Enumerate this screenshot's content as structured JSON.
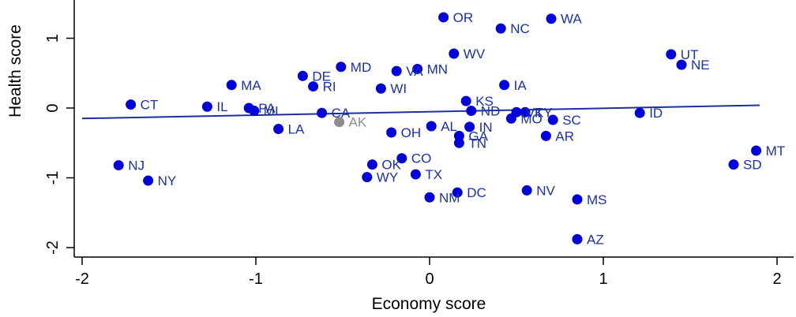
{
  "chart_data": {
    "type": "scatter",
    "title": "",
    "xlabel": "Economy score",
    "ylabel": "Health score",
    "xlim": [
      -2.05,
      2.05
    ],
    "ylim": [
      -2.2,
      1.55
    ],
    "x_ticks": [
      -2,
      -1,
      0,
      1,
      2
    ],
    "x_tick_labels": [
      "-2",
      "-1",
      "0",
      "1",
      "2"
    ],
    "y_ticks": [
      -2,
      -1,
      0,
      1
    ],
    "y_tick_labels": [
      "-2",
      "-1",
      "0",
      "1"
    ],
    "grid": false,
    "colors": {
      "point": "#0000dd",
      "highlight": "#8c8c8c",
      "fit_line": "#1a2fa0",
      "label": "#1a2fb0"
    },
    "fit_line": {
      "x": [
        -2,
        1.9
      ],
      "y": [
        -0.15,
        0.04
      ]
    },
    "points": [
      {
        "label": "OR",
        "x": 0.08,
        "y": 1.3
      },
      {
        "label": "WA",
        "x": 0.7,
        "y": 1.28
      },
      {
        "label": "NC",
        "x": 0.41,
        "y": 1.14
      },
      {
        "label": "UT",
        "x": 1.39,
        "y": 0.77
      },
      {
        "label": "NE",
        "x": 1.45,
        "y": 0.62
      },
      {
        "label": "WV",
        "x": 0.14,
        "y": 0.78
      },
      {
        "label": "MD",
        "x": -0.51,
        "y": 0.59
      },
      {
        "label": "MN",
        "x": -0.07,
        "y": 0.56
      },
      {
        "label": "VA",
        "x": -0.19,
        "y": 0.53
      },
      {
        "label": "DE",
        "x": -0.73,
        "y": 0.46
      },
      {
        "label": "MA",
        "x": -1.14,
        "y": 0.33
      },
      {
        "label": "RI",
        "x": -0.67,
        "y": 0.31
      },
      {
        "label": "IA",
        "x": 0.43,
        "y": 0.33
      },
      {
        "label": "WI",
        "x": -0.28,
        "y": 0.28
      },
      {
        "label": "KS",
        "x": 0.21,
        "y": 0.1
      },
      {
        "label": "CT",
        "x": -1.72,
        "y": 0.05
      },
      {
        "label": "IL",
        "x": -1.28,
        "y": 0.02
      },
      {
        "label": "PA",
        "x": -1.04,
        "y": 0.0
      },
      {
        "label": "MI",
        "x": -1.01,
        "y": -0.04
      },
      {
        "label": "ND",
        "x": 0.24,
        "y": -0.04
      },
      {
        "label": "KY",
        "x": 0.55,
        "y": -0.06
      },
      {
        "label": "VT",
        "x": 0.5,
        "y": -0.06
      },
      {
        "label": "ID",
        "x": 1.21,
        "y": -0.07
      },
      {
        "label": "CA",
        "x": -0.62,
        "y": -0.07
      },
      {
        "label": "MO",
        "x": 0.47,
        "y": -0.15
      },
      {
        "label": "SC",
        "x": 0.71,
        "y": -0.17
      },
      {
        "label": "AK",
        "x": -0.52,
        "y": -0.2,
        "highlight": true
      },
      {
        "label": "AL",
        "x": 0.01,
        "y": -0.26
      },
      {
        "label": "IN",
        "x": 0.23,
        "y": -0.27
      },
      {
        "label": "LA",
        "x": -0.87,
        "y": -0.3
      },
      {
        "label": "OH",
        "x": -0.22,
        "y": -0.35
      },
      {
        "label": "GA",
        "x": 0.17,
        "y": -0.4
      },
      {
        "label": "AR",
        "x": 0.67,
        "y": -0.4
      },
      {
        "label": "TN",
        "x": 0.17,
        "y": -0.5
      },
      {
        "label": "MT",
        "x": 1.88,
        "y": -0.61
      },
      {
        "label": "CO",
        "x": -0.16,
        "y": -0.72
      },
      {
        "label": "NJ",
        "x": -1.79,
        "y": -0.82
      },
      {
        "label": "SD",
        "x": 1.75,
        "y": -0.81
      },
      {
        "label": "OK",
        "x": -0.33,
        "y": -0.81
      },
      {
        "label": "TX",
        "x": -0.08,
        "y": -0.95
      },
      {
        "label": "WY",
        "x": -0.36,
        "y": -0.99
      },
      {
        "label": "NY",
        "x": -1.62,
        "y": -1.04
      },
      {
        "label": "NV",
        "x": 0.56,
        "y": -1.18
      },
      {
        "label": "DC",
        "x": 0.16,
        "y": -1.21
      },
      {
        "label": "NM",
        "x": 0.0,
        "y": -1.28
      },
      {
        "label": "MS",
        "x": 0.85,
        "y": -1.31
      },
      {
        "label": "AZ",
        "x": 0.85,
        "y": -1.88
      }
    ]
  }
}
